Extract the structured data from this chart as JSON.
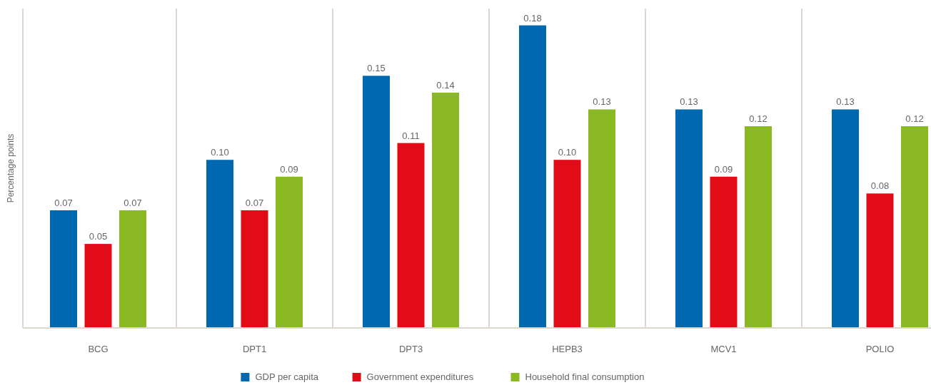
{
  "chart_data": {
    "type": "bar",
    "ylabel": "Percentage points",
    "categories": [
      "BCG",
      "DPT1",
      "DPT3",
      "HEPB3",
      "MCV1",
      "POLIO"
    ],
    "series": [
      {
        "name": "GDP per capita",
        "color": "#0067b1",
        "values": [
          0.07,
          0.1,
          0.15,
          0.18,
          0.13,
          0.13
        ],
        "value_labels": [
          "0.07",
          "0.10",
          "0.15",
          "0.18",
          "0.13",
          "0.13"
        ]
      },
      {
        "name": "Government expenditures",
        "color": "#e10c17",
        "values": [
          0.05,
          0.07,
          0.11,
          0.1,
          0.09,
          0.08
        ],
        "value_labels": [
          "0.05",
          "0.07",
          "0.11",
          "0.10",
          "0.09",
          "0.08"
        ]
      },
      {
        "name": "Household final consumption",
        "color": "#8ab923",
        "values": [
          0.07,
          0.09,
          0.14,
          0.13,
          0.12,
          0.12
        ],
        "value_labels": [
          "0.07",
          "0.09",
          "0.14",
          "0.13",
          "0.12",
          "0.12"
        ]
      }
    ],
    "ylim": [
      0,
      0.19
    ],
    "relative": false,
    "grid": "x",
    "legend": "bottom"
  }
}
